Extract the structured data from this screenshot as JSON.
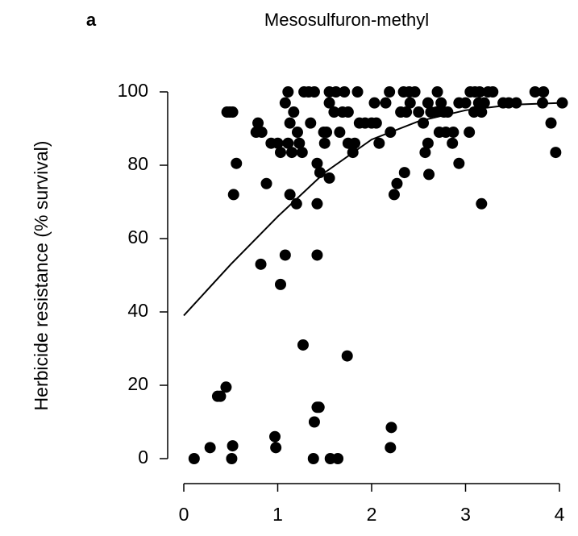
{
  "chart_data": {
    "type": "scatter",
    "panel_label": "a",
    "title": "Mesosulfuron-methyl",
    "y_label": "Herbicide resistance (% survival)",
    "xlim": [
      0,
      4
    ],
    "ylim": [
      0,
      100
    ],
    "xticks": [
      0,
      1,
      2,
      3,
      4
    ],
    "yticks": [
      0,
      20,
      40,
      60,
      80,
      100
    ],
    "color": "#000000",
    "points": {
      "x": [
        0.11,
        0.28,
        0.36,
        0.39,
        0.45,
        0.52,
        0.51,
        0.97,
        0.98,
        1.27,
        1.39,
        1.42,
        1.44,
        1.38,
        1.56,
        1.64,
        1.74,
        2.21,
        2.2,
        0.82,
        1.08,
        1.03,
        1.42,
        1.42,
        1.2,
        1.13,
        0.53,
        0.56,
        0.88,
        0.46,
        0.52,
        0.49,
        0.79,
        0.77,
        0.83,
        0.93,
        1.0,
        1.03,
        1.15,
        1.26,
        1.11,
        1.23,
        1.08,
        1.11,
        1.13,
        1.17,
        1.21,
        1.28,
        1.33,
        1.39,
        1.35,
        1.42,
        1.45,
        1.49,
        1.52,
        1.5,
        1.55,
        1.55,
        1.62,
        1.55,
        1.6,
        1.66,
        1.71,
        1.69,
        1.75,
        1.75,
        1.8,
        1.82,
        1.85,
        1.87,
        1.93,
        2.0,
        2.05,
        2.03,
        2.08,
        2.15,
        2.19,
        2.2,
        2.24,
        2.27,
        2.35,
        2.31,
        2.37,
        2.34,
        2.4,
        2.46,
        2.41,
        2.5,
        2.55,
        2.57,
        2.6,
        2.61,
        2.63,
        2.69,
        2.6,
        2.7,
        2.74,
        2.72,
        2.77,
        2.79,
        2.81,
        2.86,
        2.87,
        2.93,
        2.93,
        3.0,
        3.04,
        3.05,
        3.1,
        3.15,
        3.09,
        3.14,
        3.17,
        3.24,
        3.29,
        3.4,
        3.46,
        3.54,
        3.74,
        3.83,
        3.82,
        3.91,
        3.96,
        4.03,
        3.2,
        3.17
      ],
      "y": [
        0,
        3,
        17,
        17,
        19.5,
        3.5,
        0,
        6,
        3,
        31,
        10,
        14,
        14,
        0,
        0,
        0,
        28,
        8.5,
        3,
        53,
        55.5,
        47.5,
        55.5,
        69.5,
        69.5,
        72,
        72,
        80.5,
        75,
        94.5,
        94.5,
        94.5,
        91.5,
        89,
        89,
        86,
        86,
        83.5,
        83.5,
        83.5,
        86,
        86,
        97,
        100,
        91.5,
        94.5,
        89,
        100,
        100,
        100,
        91.5,
        80.5,
        78,
        89,
        89,
        86,
        76.5,
        100,
        100,
        97,
        94.5,
        89,
        100,
        94.5,
        94.5,
        86,
        83.5,
        86,
        100,
        91.5,
        91.5,
        91.5,
        91.5,
        97,
        86,
        97,
        100,
        89,
        72,
        75,
        78,
        94.5,
        94.5,
        100,
        100,
        100,
        97,
        94.5,
        91.5,
        83.5,
        86,
        77.5,
        94.5,
        94.5,
        97,
        100,
        97,
        89,
        94.5,
        89,
        94.5,
        86,
        89,
        80.5,
        97,
        97,
        89,
        100,
        100,
        100,
        94.5,
        97,
        69.5,
        100,
        100,
        97,
        97,
        97,
        100,
        100,
        97,
        91.5,
        83.5,
        97,
        97,
        94.5
      ]
    },
    "curve": {
      "x": [
        0,
        0.5,
        1,
        1.5,
        2,
        2.5,
        3,
        3.5,
        4
      ],
      "y": [
        39,
        53,
        66,
        78,
        87,
        92,
        95,
        96.5,
        97
      ]
    }
  }
}
